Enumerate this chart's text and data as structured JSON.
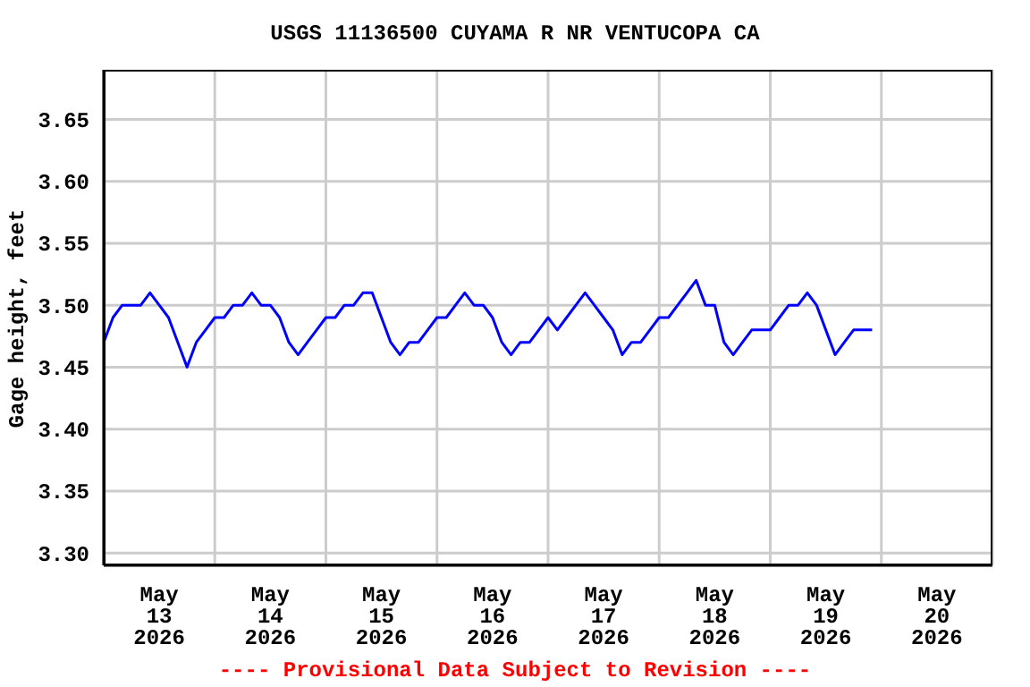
{
  "chart_data": {
    "type": "line",
    "title": "USGS 11136500 CUYAMA R NR VENTUCOPA CA",
    "ylabel": "Gage height, feet",
    "annotations": [
      "---- Provisional Data Subject to Revision ----"
    ],
    "x": [
      "2026-05-13T00:00",
      "2026-05-13T02:00",
      "2026-05-13T04:00",
      "2026-05-13T06:00",
      "2026-05-13T08:00",
      "2026-05-13T10:00",
      "2026-05-13T12:00",
      "2026-05-13T14:00",
      "2026-05-13T16:00",
      "2026-05-13T18:00",
      "2026-05-13T20:00",
      "2026-05-13T22:00",
      "2026-05-14T00:00",
      "2026-05-14T02:00",
      "2026-05-14T04:00",
      "2026-05-14T06:00",
      "2026-05-14T08:00",
      "2026-05-14T10:00",
      "2026-05-14T12:00",
      "2026-05-14T14:00",
      "2026-05-14T16:00",
      "2026-05-14T18:00",
      "2026-05-14T20:00",
      "2026-05-14T22:00",
      "2026-05-15T00:00",
      "2026-05-15T02:00",
      "2026-05-15T04:00",
      "2026-05-15T06:00",
      "2026-05-15T08:00",
      "2026-05-15T10:00",
      "2026-05-15T12:00",
      "2026-05-15T14:00",
      "2026-05-15T16:00",
      "2026-05-15T18:00",
      "2026-05-15T20:00",
      "2026-05-15T22:00",
      "2026-05-16T00:00",
      "2026-05-16T02:00",
      "2026-05-16T04:00",
      "2026-05-16T06:00",
      "2026-05-16T08:00",
      "2026-05-16T10:00",
      "2026-05-16T12:00",
      "2026-05-16T14:00",
      "2026-05-16T16:00",
      "2026-05-16T18:00",
      "2026-05-16T20:00",
      "2026-05-16T22:00",
      "2026-05-17T00:00",
      "2026-05-17T02:00",
      "2026-05-17T04:00",
      "2026-05-17T06:00",
      "2026-05-17T08:00",
      "2026-05-17T10:00",
      "2026-05-17T12:00",
      "2026-05-17T14:00",
      "2026-05-17T16:00",
      "2026-05-17T18:00",
      "2026-05-17T20:00",
      "2026-05-17T22:00",
      "2026-05-18T00:00",
      "2026-05-18T02:00",
      "2026-05-18T04:00",
      "2026-05-18T06:00",
      "2026-05-18T08:00",
      "2026-05-18T10:00",
      "2026-05-18T12:00",
      "2026-05-18T14:00",
      "2026-05-18T16:00",
      "2026-05-18T18:00",
      "2026-05-18T20:00",
      "2026-05-18T22:00",
      "2026-05-19T00:00",
      "2026-05-19T02:00",
      "2026-05-19T04:00",
      "2026-05-19T06:00",
      "2026-05-19T08:00",
      "2026-05-19T10:00",
      "2026-05-19T12:00",
      "2026-05-19T14:00",
      "2026-05-19T16:00",
      "2026-05-19T18:00",
      "2026-05-19T20:00",
      "2026-05-19T22:00"
    ],
    "series": [
      {
        "color": "#0000ff",
        "values": [
          3.47,
          3.49,
          3.5,
          3.5,
          3.5,
          3.51,
          3.5,
          3.49,
          3.47,
          3.45,
          3.47,
          3.48,
          3.49,
          3.49,
          3.5,
          3.5,
          3.51,
          3.5,
          3.5,
          3.49,
          3.47,
          3.46,
          3.47,
          3.48,
          3.49,
          3.49,
          3.5,
          3.5,
          3.51,
          3.51,
          3.49,
          3.47,
          3.46,
          3.47,
          3.47,
          3.48,
          3.49,
          3.49,
          3.5,
          3.51,
          3.5,
          3.5,
          3.49,
          3.47,
          3.46,
          3.47,
          3.47,
          3.48,
          3.49,
          3.48,
          3.49,
          3.5,
          3.51,
          3.5,
          3.49,
          3.48,
          3.46,
          3.47,
          3.47,
          3.48,
          3.49,
          3.49,
          3.5,
          3.51,
          3.52,
          3.5,
          3.5,
          3.47,
          3.46,
          3.47,
          3.48,
          3.48,
          3.48,
          3.49,
          3.5,
          3.5,
          3.51,
          3.5,
          3.48,
          3.46,
          3.47,
          3.48,
          3.48,
          3.48
        ]
      }
    ],
    "xlim": [
      "2026-05-13T00:00",
      "2026-05-21T00:00"
    ],
    "xticks": [
      {
        "value": "2026-05-13T00:00",
        "label": null
      },
      {
        "value": "2026-05-13T12:00",
        "label": "May\n13\n2026"
      },
      {
        "value": "2026-05-14T00:00",
        "label": null
      },
      {
        "value": "2026-05-14T12:00",
        "label": "May\n14\n2026"
      },
      {
        "value": "2026-05-15T00:00",
        "label": null
      },
      {
        "value": "2026-05-15T12:00",
        "label": "May\n15\n2026"
      },
      {
        "value": "2026-05-16T00:00",
        "label": null
      },
      {
        "value": "2026-05-16T12:00",
        "label": "May\n16\n2026"
      },
      {
        "value": "2026-05-17T00:00",
        "label": null
      },
      {
        "value": "2026-05-17T12:00",
        "label": "May\n17\n2026"
      },
      {
        "value": "2026-05-18T00:00",
        "label": null
      },
      {
        "value": "2026-05-18T12:00",
        "label": "May\n18\n2026"
      },
      {
        "value": "2026-05-19T00:00",
        "label": null
      },
      {
        "value": "2026-05-19T12:00",
        "label": "May\n19\n2026"
      },
      {
        "value": "2026-05-20T00:00",
        "label": null
      },
      {
        "value": "2026-05-20T12:00",
        "label": "May\n20\n2026"
      },
      {
        "value": "2026-05-21T00:00",
        "label": null
      }
    ],
    "ylim": [
      3.29,
      3.69
    ],
    "yticks": [
      {
        "value": 3.3,
        "label": "3.30"
      },
      {
        "value": 3.35,
        "label": "3.35"
      },
      {
        "value": 3.4,
        "label": "3.40"
      },
      {
        "value": 3.45,
        "label": "3.45"
      },
      {
        "value": 3.5,
        "label": "3.50"
      },
      {
        "value": 3.55,
        "label": "3.55"
      },
      {
        "value": 3.6,
        "label": "3.60"
      },
      {
        "value": 3.65,
        "label": "3.65"
      }
    ],
    "grid": true,
    "marker": "none",
    "line_style": "solid"
  }
}
